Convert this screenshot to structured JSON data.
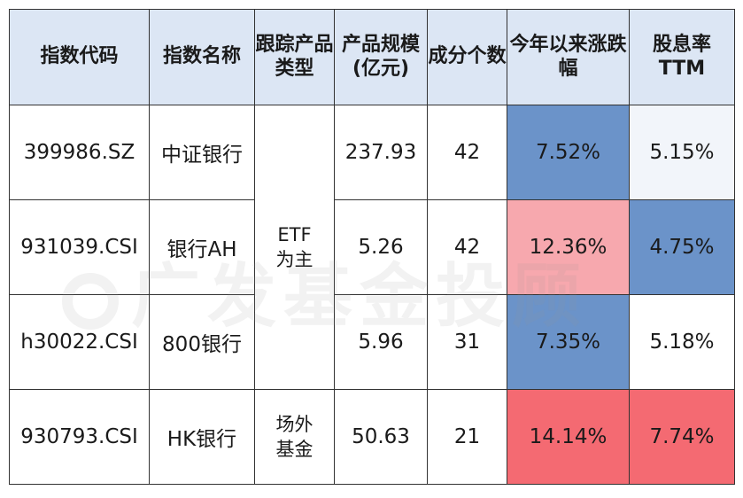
{
  "watermark": "广发基金投顾",
  "headers": {
    "code": "指数代码",
    "name": "指数名称",
    "type": "跟踪产品类型",
    "size": "产品规模(亿元)",
    "count": "成分个数",
    "ytd": "今年以来涨跌幅",
    "yield": "股息率TTM"
  },
  "rows": [
    {
      "code": "399986.SZ",
      "name": "中证银行",
      "size": "237.93",
      "count": "42",
      "ytd": "7.52%",
      "yield": "5.15%"
    },
    {
      "code": "931039.CSI",
      "name": "银行AH",
      "size": "5.26",
      "count": "42",
      "ytd": "12.36%",
      "yield": "4.75%"
    },
    {
      "code": "h30022.CSI",
      "name": "800银行",
      "size": "5.96",
      "count": "31",
      "ytd": "7.35%",
      "yield": "5.18%"
    },
    {
      "code": "930793.CSI",
      "name": "HK银行",
      "size": "50.63",
      "count": "21",
      "ytd": "14.14%",
      "yield": "7.74%"
    }
  ],
  "types": {
    "etf_line1": "ETF",
    "etf_line2": "为主",
    "otc_line1": "场外",
    "otc_line2": "基金"
  },
  "cell_colors": {
    "strong_blue": "#6b93c9",
    "light_pink": "#f7a8ae",
    "strong_red": "#f46a72",
    "header_blue": "#dce6f4"
  }
}
